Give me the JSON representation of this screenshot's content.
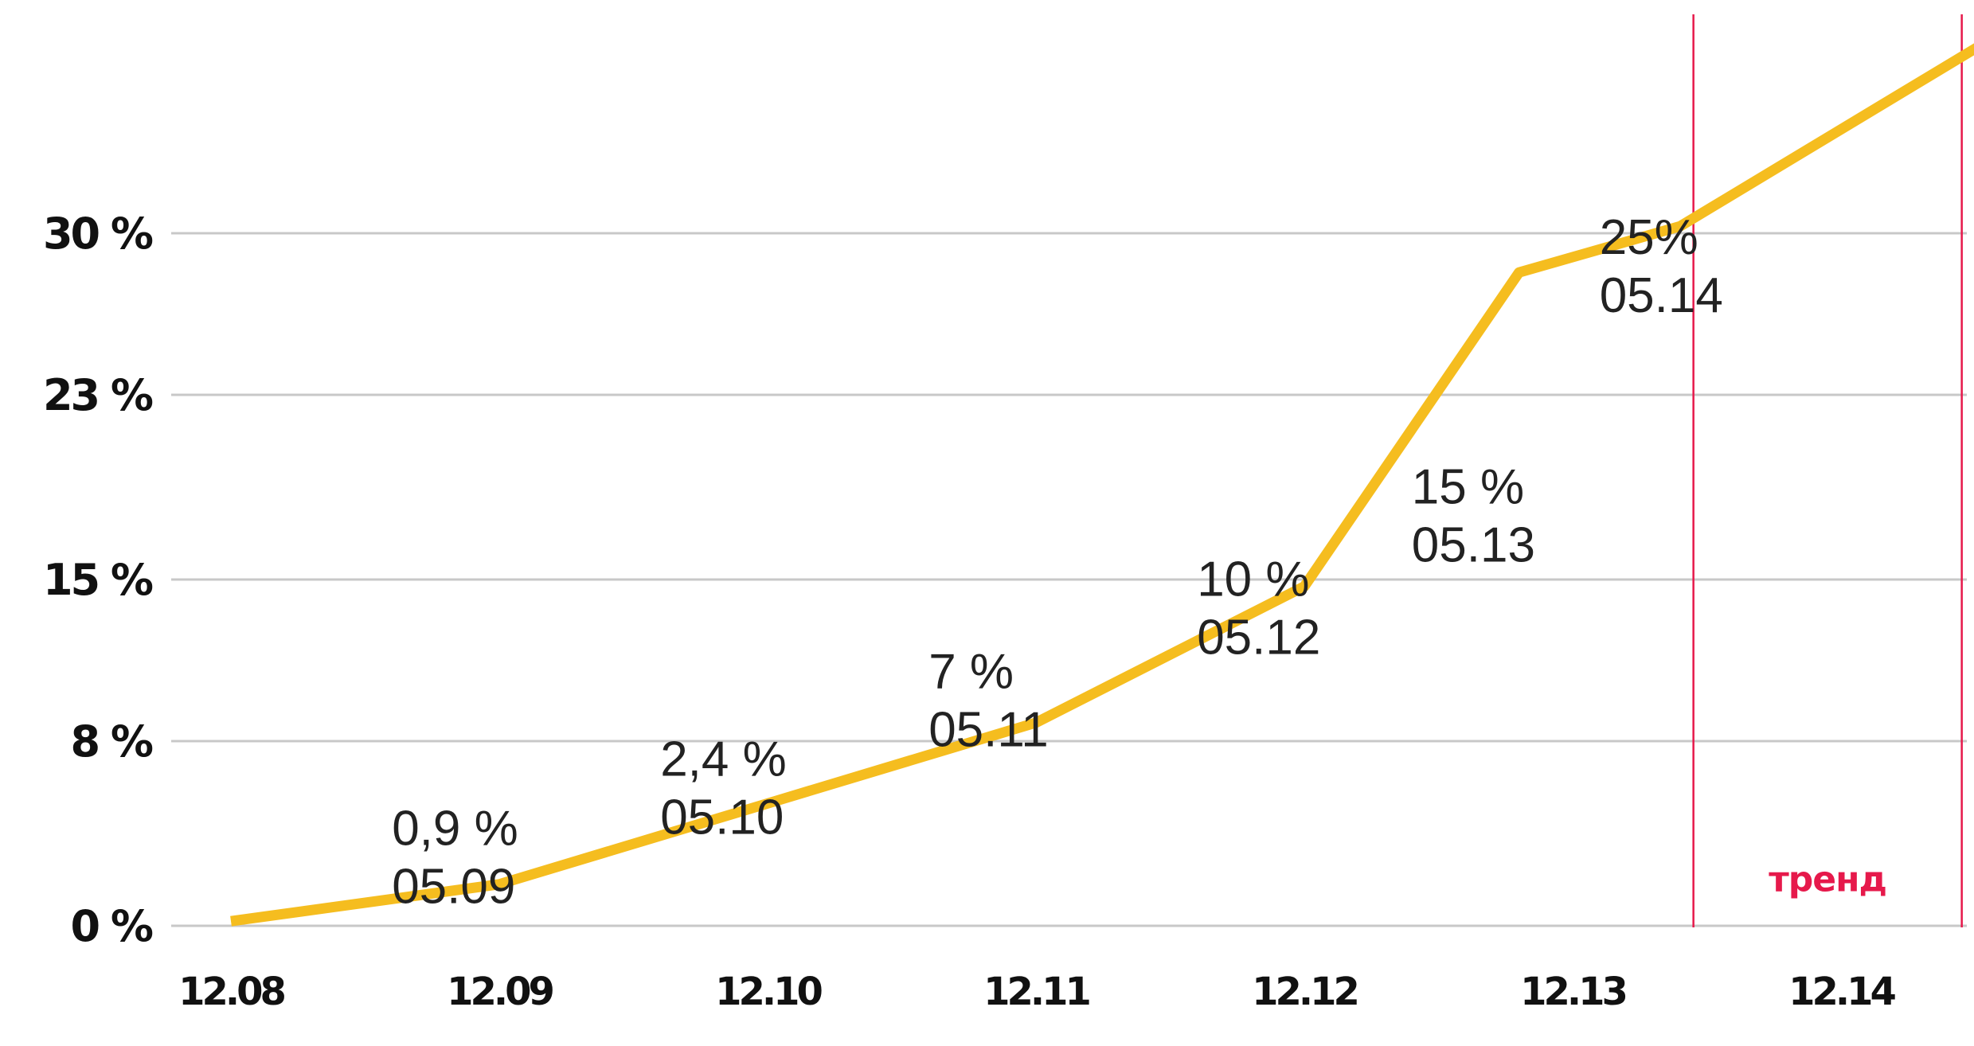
{
  "chart_data": {
    "type": "line",
    "title": "",
    "xlabel": "",
    "ylabel": "",
    "categories": [
      "12.08",
      "12.09",
      "12.10",
      "12.11",
      "12.12",
      "12.13",
      "12.14"
    ],
    "y_ticks": [
      {
        "value": 0,
        "label": "0 %"
      },
      {
        "value": 8,
        "label": "8 %"
      },
      {
        "value": 15,
        "label": "15 %"
      },
      {
        "value": 23,
        "label": "23 %"
      },
      {
        "value": 30,
        "label": "30 %"
      }
    ],
    "ylim": [
      0,
      30
    ],
    "grid": true,
    "series": [
      {
        "color": "#F5BD1F",
        "points": [
          {
            "x": 0.0,
            "y": 0.2
          },
          {
            "x": 1.0,
            "y": 1.8
          },
          {
            "x": 2.0,
            "y": 5.3
          },
          {
            "x": 3.0,
            "y": 8.8
          },
          {
            "x": 4.0,
            "y": 14.7
          },
          {
            "x": 4.8,
            "y": 28.3
          },
          {
            "x": 5.4,
            "y": 30.3
          },
          {
            "x": 6.6,
            "y": 38.7
          }
        ]
      }
    ],
    "annotations": [
      {
        "value": "0,9 %",
        "date": "05.09",
        "x": 0.6,
        "y": 3.5
      },
      {
        "value": "2,4 %",
        "date": "05.10",
        "x": 1.6,
        "y": 6.5
      },
      {
        "value": "7 %",
        "date": "05.11",
        "x": 2.6,
        "y": 10.3
      },
      {
        "value": "10 %",
        "date": "05.12",
        "x": 3.6,
        "y": 14.3
      },
      {
        "value": "15 %",
        "date": "05.13",
        "x": 4.4,
        "y": 18.3
      },
      {
        "value": "25%",
        "date": "05.14",
        "x": 5.1,
        "y": 29.1
      }
    ],
    "trend": {
      "label": "тренд",
      "x_start": 5.45,
      "x_end": 6.45,
      "color": "#E6194B",
      "label_x": 5.95,
      "label_y": 1.5
    },
    "colors": {
      "line": "#F5BD1F",
      "grid": "#C8C8C8",
      "trend": "#E6194B",
      "text": "#111111"
    }
  }
}
